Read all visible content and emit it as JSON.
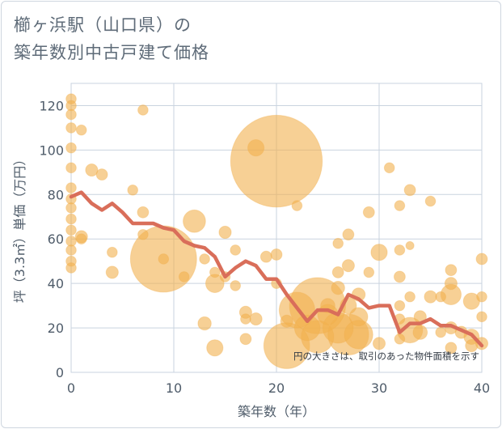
{
  "title": {
    "line1": "櫛ヶ浜駅（山口県）の",
    "line2": "築年数別中古戸建て価格"
  },
  "colors": {
    "bubble": "#f2b04e",
    "line": "#d96e5a",
    "grid": "#c9d3df",
    "plot_bg": "#ffffff"
  },
  "chart_data": {
    "type": "scatter",
    "xlabel": "築年数（年）",
    "ylabel": "坪（3.3㎡）単価（万円）",
    "xlim": [
      0,
      40
    ],
    "ylim": [
      0,
      130
    ],
    "x_ticks": [
      0,
      10,
      20,
      30,
      40
    ],
    "y_ticks": [
      0,
      20,
      40,
      60,
      80,
      100,
      120
    ],
    "grid": true,
    "note": "円の大きさは、取引のあった物件面積を示す",
    "bubbles": [
      {
        "x": 0,
        "y": 123,
        "s": 1
      },
      {
        "x": 0,
        "y": 120,
        "s": 1
      },
      {
        "x": 0,
        "y": 116,
        "s": 1
      },
      {
        "x": 0,
        "y": 110,
        "s": 1
      },
      {
        "x": 0,
        "y": 101,
        "s": 1
      },
      {
        "x": 0,
        "y": 92,
        "s": 1
      },
      {
        "x": 0,
        "y": 83,
        "s": 1
      },
      {
        "x": 0,
        "y": 78,
        "s": 1
      },
      {
        "x": 0,
        "y": 74,
        "s": 1
      },
      {
        "x": 0,
        "y": 69,
        "s": 1
      },
      {
        "x": 0,
        "y": 64,
        "s": 1
      },
      {
        "x": 0,
        "y": 59,
        "s": 1
      },
      {
        "x": 0,
        "y": 55,
        "s": 1
      },
      {
        "x": 0,
        "y": 50,
        "s": 1
      },
      {
        "x": 0,
        "y": 47,
        "s": 1
      },
      {
        "x": 1,
        "y": 109,
        "s": 1
      },
      {
        "x": 1,
        "y": 61,
        "s": 1.2
      },
      {
        "x": 1,
        "y": 60,
        "s": 1
      },
      {
        "x": 2,
        "y": 91,
        "s": 1.2
      },
      {
        "x": 3,
        "y": 89,
        "s": 1.1
      },
      {
        "x": 4,
        "y": 54,
        "s": 1
      },
      {
        "x": 4,
        "y": 45,
        "s": 1.2
      },
      {
        "x": 6,
        "y": 82,
        "s": 1
      },
      {
        "x": 7,
        "y": 118,
        "s": 1
      },
      {
        "x": 7,
        "y": 72,
        "s": 1.1
      },
      {
        "x": 7,
        "y": 62,
        "s": 1
      },
      {
        "x": 9,
        "y": 51,
        "s": 6.5
      },
      {
        "x": 9,
        "y": 51,
        "s": 1
      },
      {
        "x": 11,
        "y": 43,
        "s": 1
      },
      {
        "x": 12,
        "y": 68,
        "s": 2.2
      },
      {
        "x": 13,
        "y": 51,
        "s": 1
      },
      {
        "x": 13,
        "y": 22,
        "s": 1.3
      },
      {
        "x": 14,
        "y": 45,
        "s": 1
      },
      {
        "x": 14,
        "y": 40,
        "s": 1.8
      },
      {
        "x": 14,
        "y": 11,
        "s": 1.6
      },
      {
        "x": 15,
        "y": 63,
        "s": 1.2
      },
      {
        "x": 15,
        "y": 43,
        "s": 1
      },
      {
        "x": 16,
        "y": 55,
        "s": 1
      },
      {
        "x": 16,
        "y": 39,
        "s": 1
      },
      {
        "x": 17,
        "y": 27,
        "s": 1.2
      },
      {
        "x": 17,
        "y": 24,
        "s": 1
      },
      {
        "x": 17,
        "y": 15,
        "s": 1.1
      },
      {
        "x": 18,
        "y": 101,
        "s": 1.6
      },
      {
        "x": 18,
        "y": 24,
        "s": 1.2
      },
      {
        "x": 19,
        "y": 52,
        "s": 1.1
      },
      {
        "x": 20,
        "y": 95,
        "s": 9.0
      },
      {
        "x": 20,
        "y": 53,
        "s": 1.1
      },
      {
        "x": 20,
        "y": 40,
        "s": 1
      },
      {
        "x": 21,
        "y": 23,
        "s": 1.2
      },
      {
        "x": 21,
        "y": 12,
        "s": 4.5
      },
      {
        "x": 22,
        "y": 75,
        "s": 1
      },
      {
        "x": 22,
        "y": 28,
        "s": 3.5
      },
      {
        "x": 23,
        "y": 20,
        "s": 2.5
      },
      {
        "x": 24,
        "y": 30,
        "s": 5.5
      },
      {
        "x": 24,
        "y": 16,
        "s": 3.2
      },
      {
        "x": 25,
        "y": 26,
        "s": 2.0
      },
      {
        "x": 25,
        "y": 30,
        "s": 1.4
      },
      {
        "x": 26,
        "y": 58,
        "s": 1
      },
      {
        "x": 26,
        "y": 45,
        "s": 1.1
      },
      {
        "x": 26,
        "y": 38,
        "s": 1.3
      },
      {
        "x": 26,
        "y": 20,
        "s": 3.0
      },
      {
        "x": 27,
        "y": 62,
        "s": 1.1
      },
      {
        "x": 27,
        "y": 48,
        "s": 1.2
      },
      {
        "x": 27,
        "y": 30,
        "s": 1.6
      },
      {
        "x": 27,
        "y": 17,
        "s": 4.0
      },
      {
        "x": 28,
        "y": 35,
        "s": 1.3
      },
      {
        "x": 28,
        "y": 25,
        "s": 1.8
      },
      {
        "x": 28,
        "y": 17,
        "s": 2.8
      },
      {
        "x": 29,
        "y": 72,
        "s": 1.1
      },
      {
        "x": 29,
        "y": 45,
        "s": 1
      },
      {
        "x": 30,
        "y": 54,
        "s": 1.6
      },
      {
        "x": 30,
        "y": 13,
        "s": 1.2
      },
      {
        "x": 31,
        "y": 92,
        "s": 1
      },
      {
        "x": 32,
        "y": 75,
        "s": 1
      },
      {
        "x": 32,
        "y": 55,
        "s": 1
      },
      {
        "x": 32,
        "y": 43,
        "s": 1.1
      },
      {
        "x": 32,
        "y": 30,
        "s": 1
      },
      {
        "x": 32,
        "y": 24,
        "s": 1
      },
      {
        "x": 32,
        "y": 15,
        "s": 1
      },
      {
        "x": 33,
        "y": 82,
        "s": 1.1
      },
      {
        "x": 33,
        "y": 57,
        "s": 0.8
      },
      {
        "x": 33,
        "y": 34,
        "s": 1
      },
      {
        "x": 33,
        "y": 19,
        "s": 2.5
      },
      {
        "x": 34,
        "y": 25,
        "s": 1.2
      },
      {
        "x": 34,
        "y": 18,
        "s": 1.4
      },
      {
        "x": 35,
        "y": 77,
        "s": 1
      },
      {
        "x": 35,
        "y": 34,
        "s": 1.2
      },
      {
        "x": 36,
        "y": 34,
        "s": 1
      },
      {
        "x": 36,
        "y": 18,
        "s": 1
      },
      {
        "x": 37,
        "y": 46,
        "s": 1.1
      },
      {
        "x": 37,
        "y": 40,
        "s": 1.2
      },
      {
        "x": 37,
        "y": 35,
        "s": 2.0
      },
      {
        "x": 37,
        "y": 20,
        "s": 1.2
      },
      {
        "x": 37,
        "y": 11,
        "s": 1.1
      },
      {
        "x": 38,
        "y": 18,
        "s": 1.2
      },
      {
        "x": 39,
        "y": 32,
        "s": 1.6
      },
      {
        "x": 39,
        "y": 16,
        "s": 1.5
      },
      {
        "x": 39,
        "y": 12,
        "s": 1.2
      },
      {
        "x": 40,
        "y": 51,
        "s": 1.1
      },
      {
        "x": 40,
        "y": 34,
        "s": 1
      },
      {
        "x": 40,
        "y": 25,
        "s": 1
      },
      {
        "x": 40,
        "y": 13,
        "s": 1.2
      }
    ],
    "trend": {
      "x": [
        0,
        1,
        2,
        3,
        4,
        5,
        6,
        7,
        8,
        9,
        10,
        11,
        12,
        13,
        14,
        15,
        16,
        17,
        18,
        19,
        20,
        21,
        22,
        23,
        24,
        25,
        26,
        27,
        28,
        29,
        30,
        31,
        32,
        33,
        34,
        35,
        36,
        37,
        38,
        39,
        40
      ],
      "y": [
        79,
        81,
        76,
        73,
        76,
        72,
        67,
        67,
        67,
        65,
        64,
        59,
        57,
        56,
        52,
        43,
        47,
        50,
        48,
        42,
        42,
        35,
        29,
        23,
        28,
        28,
        26,
        35,
        33,
        29,
        30,
        30,
        18,
        22,
        22,
        24,
        21,
        21,
        19,
        17,
        12
      ]
    }
  }
}
